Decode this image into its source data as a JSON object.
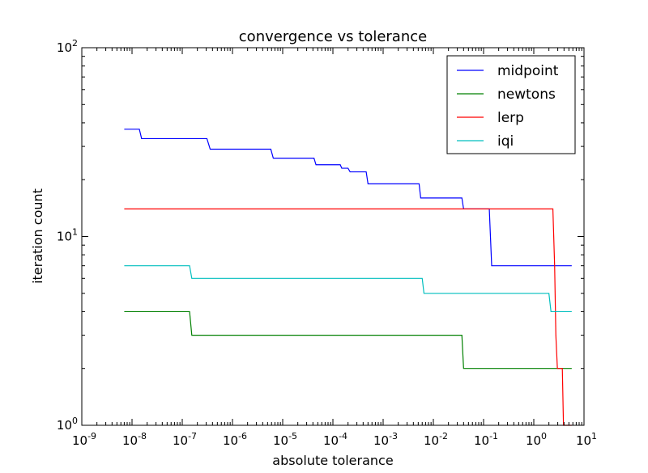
{
  "chart_data": {
    "type": "line",
    "title": "convergence vs tolerance",
    "xlabel": "absolute tolerance",
    "ylabel": "iteration count",
    "x_scale": "log",
    "y_scale": "log",
    "xlim": [
      1e-09,
      10
    ],
    "ylim": [
      1,
      100
    ],
    "x_ticks": [
      {
        "value": 1e-09,
        "base": "10",
        "exp": "-9"
      },
      {
        "value": 1e-08,
        "base": "10",
        "exp": "-8"
      },
      {
        "value": 1e-07,
        "base": "10",
        "exp": "-7"
      },
      {
        "value": 1e-06,
        "base": "10",
        "exp": "-6"
      },
      {
        "value": 1e-05,
        "base": "10",
        "exp": "-5"
      },
      {
        "value": 0.0001,
        "base": "10",
        "exp": "-4"
      },
      {
        "value": 0.001,
        "base": "10",
        "exp": "-3"
      },
      {
        "value": 0.01,
        "base": "10",
        "exp": "-2"
      },
      {
        "value": 0.1,
        "base": "10",
        "exp": "-1"
      },
      {
        "value": 1,
        "base": "10",
        "exp": "0"
      },
      {
        "value": 10,
        "base": "10",
        "exp": "1"
      }
    ],
    "y_ticks": [
      {
        "value": 1,
        "base": "10",
        "exp": "0"
      },
      {
        "value": 10,
        "base": "10",
        "exp": "1"
      },
      {
        "value": 100,
        "base": "10",
        "exp": "2"
      }
    ],
    "legend_position": "top-right",
    "series": [
      {
        "name": "midpoint",
        "color": "#0000ff",
        "points": [
          [
            7e-09,
            37
          ],
          [
            1.4e-08,
            37
          ],
          [
            1.55e-08,
            33
          ],
          [
            3.1e-07,
            33
          ],
          [
            3.6e-07,
            29
          ],
          [
            5.8e-06,
            29
          ],
          [
            6.5e-06,
            26
          ],
          [
            4.2e-05,
            26
          ],
          [
            4.6e-05,
            24
          ],
          [
            0.00014,
            24
          ],
          [
            0.00015,
            23
          ],
          [
            0.0002,
            23
          ],
          [
            0.00022,
            22
          ],
          [
            0.00046,
            22
          ],
          [
            0.0005,
            19
          ],
          [
            0.0052,
            19
          ],
          [
            0.0056,
            16
          ],
          [
            0.037,
            16
          ],
          [
            0.04,
            14
          ],
          [
            0.13,
            14
          ],
          [
            0.145,
            7
          ],
          [
            5.7,
            7
          ]
        ]
      },
      {
        "name": "newtons",
        "color": "#008000",
        "points": [
          [
            7e-09,
            4
          ],
          [
            1.4e-07,
            4
          ],
          [
            1.55e-07,
            3
          ],
          [
            0.037,
            3
          ],
          [
            0.04,
            2
          ],
          [
            5.7,
            2
          ]
        ]
      },
      {
        "name": "lerp",
        "color": "#ff0000",
        "points": [
          [
            7e-09,
            14
          ],
          [
            2.4,
            14
          ],
          [
            2.6,
            7
          ],
          [
            2.75,
            3
          ],
          [
            2.95,
            2
          ],
          [
            3.7,
            2
          ],
          [
            3.9,
            1
          ],
          [
            5.7,
            1
          ]
        ]
      },
      {
        "name": "iqi",
        "color": "#00bfbf",
        "points": [
          [
            7e-09,
            7
          ],
          [
            1.4e-07,
            7
          ],
          [
            1.55e-07,
            6
          ],
          [
            0.006,
            6
          ],
          [
            0.0065,
            5
          ],
          [
            2.0,
            5
          ],
          [
            2.2,
            4
          ],
          [
            5.7,
            4
          ]
        ]
      }
    ]
  }
}
